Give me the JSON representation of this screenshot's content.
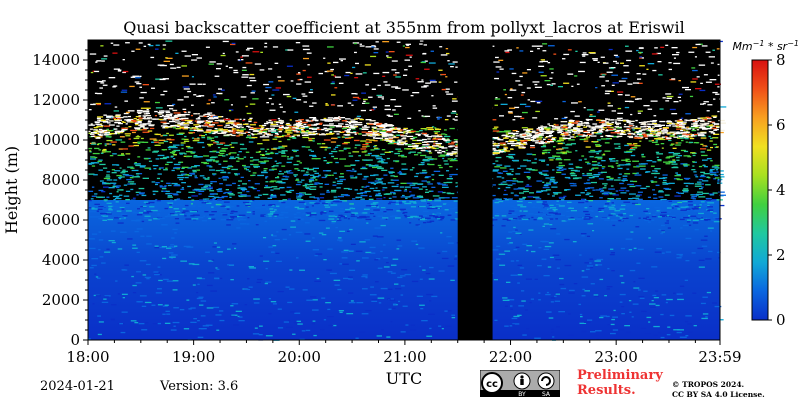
{
  "chart_data": {
    "type": "heatmap",
    "title": "Quasi backscatter coefficient at 355nm from pollyxt_lacros at Eriswil",
    "xlabel": "UTC",
    "ylabel": "Height (m)",
    "x_tick_labels": [
      "18:00",
      "19:00",
      "20:00",
      "21:00",
      "22:00",
      "23:00",
      "23:59"
    ],
    "x_tick_hours": [
      18,
      19,
      20,
      21,
      22,
      23,
      23.983
    ],
    "xlim_hours": [
      18,
      23.983
    ],
    "y_ticks": [
      0,
      2000,
      4000,
      6000,
      8000,
      10000,
      12000,
      14000
    ],
    "y_tick_labels": [
      "0",
      "2000",
      "4000",
      "6000",
      "8000",
      "10000",
      "12000",
      "14000"
    ],
    "ylim": [
      0,
      15000
    ],
    "colorbar": {
      "label": "Mm^-1 * sr^-1",
      "ticks": [
        0,
        2,
        4,
        6,
        8
      ],
      "tick_labels": [
        "0",
        "2",
        "4",
        "6",
        "8"
      ],
      "range": [
        0,
        8
      ],
      "colors": [
        "#0a2fc8",
        "#0a66e0",
        "#10a9d6",
        "#20c8a0",
        "#40d040",
        "#a8e020",
        "#f0e020",
        "#f8a020",
        "#f05018",
        "#d81010"
      ]
    },
    "data_gap_hours": [
      21.5,
      21.83
    ],
    "layers": [
      {
        "feature": "low-signal blue background",
        "height_range": [
          0,
          7000
        ],
        "value_approx": 0.5
      },
      {
        "feature": "noisy aerosol/cloud signal",
        "height_range": [
          7000,
          10500
        ],
        "value_approx": 2.5
      },
      {
        "feature": "cirrus cloud (saturated)",
        "height_range": [
          10000,
          12000
        ],
        "value_approx": 8
      },
      {
        "feature": "noise above cloud",
        "height_range": [
          12000,
          15000
        ],
        "value_approx": 0
      }
    ],
    "grid": false
  },
  "footer": {
    "date": "2024-01-21",
    "version": "Version: 3.6",
    "preliminary_line1": "Preliminary",
    "preliminary_line2": "Results.",
    "copyright_line1": "© TROPOS 2024.",
    "copyright_line2": "CC BY SA 4.0 License."
  },
  "cc_badge": {
    "by": "BY",
    "sa": "SA"
  }
}
